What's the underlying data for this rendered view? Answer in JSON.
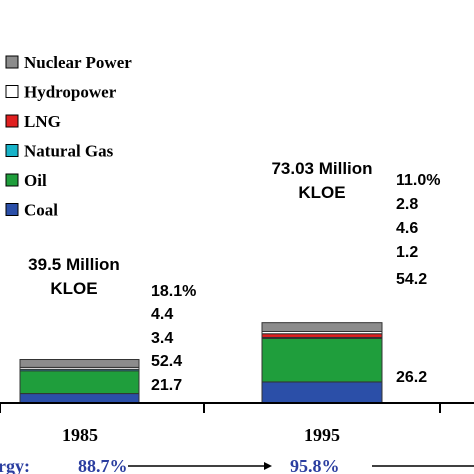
{
  "chart_data": {
    "type": "bar",
    "stacked": true,
    "categories": [
      "1985",
      "1995"
    ],
    "series": [
      {
        "name": "Coal",
        "color": "#2b4fa8",
        "values": [
          21.7,
          26.2
        ]
      },
      {
        "name": "Oil",
        "color": "#1f9e3c",
        "values": [
          52.4,
          54.2
        ]
      },
      {
        "name": "Natural Gas",
        "color": "#18b3c8",
        "values": [
          3.4,
          1.2
        ]
      },
      {
        "name": "LNG",
        "color": "#e02020",
        "values": [
          0,
          4.6
        ]
      },
      {
        "name": "Hydropower",
        "color": "#ffffff",
        "values": [
          4.4,
          2.8
        ]
      },
      {
        "name": "Nuclear Power",
        "color": "#8c8c8c",
        "values": [
          18.1,
          11.0
        ]
      }
    ],
    "legend": {
      "placement": "top-left",
      "order": [
        "Nuclear Power",
        "Hydropower",
        "LNG",
        "Natural Gas",
        "Oil",
        "Coal"
      ]
    },
    "totals": [
      {
        "line1": "39.5 Million",
        "line2": "KLOE"
      },
      {
        "line1": "73.03 Million",
        "line2": "KLOE"
      }
    ],
    "bar_labels": [
      [
        "18.1%",
        "4.4",
        "3.4",
        "52.4",
        "21.7"
      ],
      [
        "11.0%",
        "2.8",
        "4.6",
        "1.2",
        "54.2",
        "26.2"
      ]
    ],
    "bottom": {
      "left_text": "rgy:",
      "values": [
        "88.7%",
        "95.8%"
      ]
    }
  }
}
